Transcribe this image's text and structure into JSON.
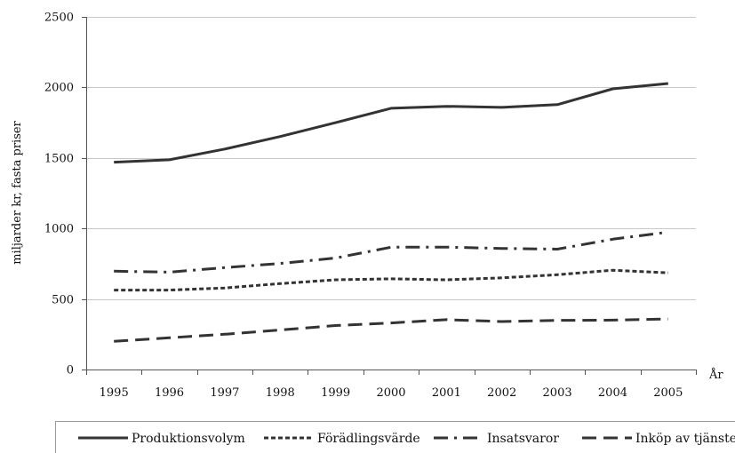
{
  "chart_data": {
    "type": "line",
    "title": "",
    "xlabel": "År",
    "ylabel": "miljarder kr, fasta priser",
    "ylim": [
      0,
      2500
    ],
    "yticks": [
      0,
      500,
      1000,
      1500,
      2000,
      2500
    ],
    "grid": "horizontal",
    "legend_position": "bottom",
    "categories": [
      "1995",
      "1996",
      "1997",
      "1998",
      "1999",
      "2000",
      "2001",
      "2002",
      "2003",
      "2004",
      "2005"
    ],
    "series": [
      {
        "name": "Produktionsvolym",
        "style": "solid",
        "color": "#333333",
        "values": [
          1470,
          1487,
          1563,
          1652,
          1750,
          1852,
          1866,
          1858,
          1878,
          1990,
          2028
        ]
      },
      {
        "name": "Förädlingsvärde",
        "style": "dotted",
        "color": "#333333",
        "values": [
          563,
          563,
          578,
          609,
          636,
          643,
          636,
          650,
          672,
          704,
          686
        ]
      },
      {
        "name": "Insatsvaror",
        "style": "dash-dot",
        "color": "#333333",
        "values": [
          697,
          690,
          722,
          752,
          790,
          867,
          868,
          858,
          853,
          924,
          974
        ]
      },
      {
        "name": "Inköp av tjänster",
        "style": "dashed",
        "color": "#333333",
        "values": [
          200,
          225,
          250,
          280,
          312,
          330,
          353,
          340,
          348,
          350,
          358
        ]
      }
    ]
  }
}
